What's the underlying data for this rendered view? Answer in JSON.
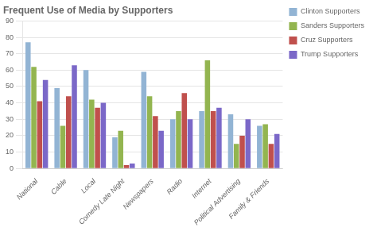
{
  "chart_data": {
    "type": "bar",
    "title": "Frequent Use of Media by Supporters",
    "categories": [
      "National",
      "Cable",
      "Local",
      "Comedy Late Night",
      "Newspapers",
      "Radio",
      "Internet",
      "Political Advertising",
      "Family & Friends"
    ],
    "series": [
      {
        "name": "Clinton Supporters",
        "color": "#92b4d4",
        "values": [
          77,
          49,
          60,
          19,
          59,
          30,
          35,
          33,
          26
        ]
      },
      {
        "name": "Sanders Supporters",
        "color": "#93b550",
        "values": [
          62,
          26,
          42,
          23,
          44,
          35,
          66,
          15,
          27
        ]
      },
      {
        "name": "Cruz Supporters",
        "color": "#c0504d",
        "values": [
          41,
          44,
          37,
          2,
          32,
          46,
          35,
          20,
          15
        ]
      },
      {
        "name": "Trump Supporters",
        "color": "#7b68c8",
        "values": [
          54,
          63,
          40,
          3,
          23,
          30,
          37,
          30,
          21
        ]
      }
    ],
    "ylim": [
      0,
      90
    ],
    "yticks": [
      0,
      10,
      20,
      30,
      40,
      50,
      60,
      70,
      80,
      90
    ],
    "grid": true,
    "legend": "right"
  }
}
